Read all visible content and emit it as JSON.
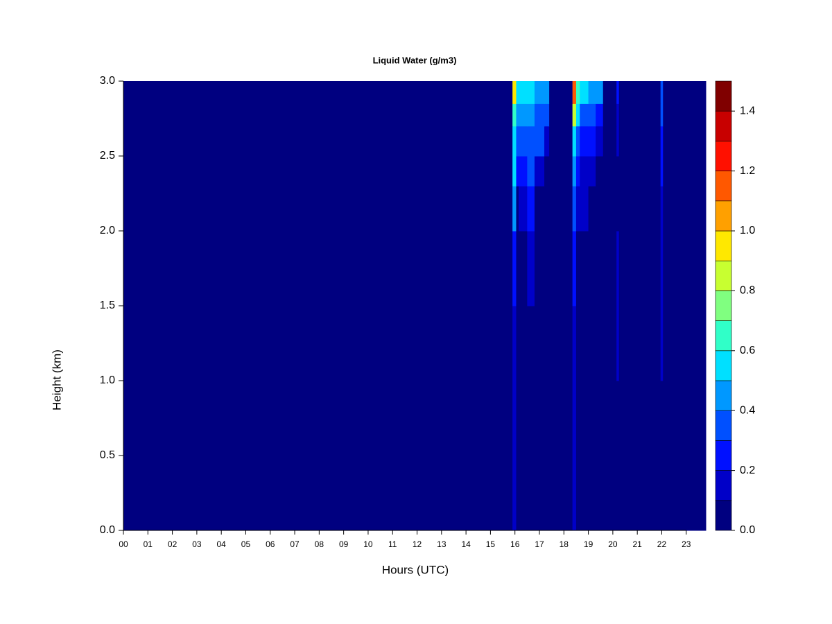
{
  "chart_data": {
    "type": "heatmap",
    "title": "Liquid Water (g/m3)",
    "x_label": "Hours (UTC)",
    "y_label": "Height (km)",
    "x_edges": [
      0,
      15.9,
      16.05,
      16.15,
      16.5,
      16.8,
      17.2,
      17.4,
      18.35,
      18.5,
      18.65,
      19.0,
      19.3,
      19.6,
      20.15,
      20.25,
      21.95,
      22.05,
      23.8
    ],
    "y_edges": [
      0,
      0.5,
      1.0,
      1.5,
      2.0,
      2.3,
      2.5,
      2.7,
      2.85,
      3.0
    ],
    "values": [
      [
        0,
        0.15,
        0,
        0,
        0,
        0,
        0,
        0,
        0.15,
        0,
        0,
        0,
        0,
        0,
        0,
        0,
        0,
        0
      ],
      [
        0,
        0.15,
        0,
        0,
        0,
        0,
        0,
        0,
        0.15,
        0,
        0,
        0,
        0,
        0,
        0,
        0,
        0,
        0
      ],
      [
        0,
        0.15,
        0,
        0,
        0,
        0,
        0,
        0,
        0.15,
        0,
        0,
        0,
        0,
        0,
        0.12,
        0,
        0.12,
        0
      ],
      [
        0,
        0.25,
        0,
        0,
        0.12,
        0,
        0,
        0,
        0.2,
        0,
        0,
        0,
        0,
        0,
        0.12,
        0,
        0.12,
        0
      ],
      [
        0,
        0.45,
        0,
        0.15,
        0.2,
        0,
        0,
        0,
        0.35,
        0.15,
        0.12,
        0,
        0,
        0,
        0,
        0,
        0.15,
        0
      ],
      [
        0,
        0.5,
        0.2,
        0.25,
        0.3,
        0.15,
        0,
        0,
        0.45,
        0.25,
        0.15,
        0.12,
        0,
        0,
        0,
        0,
        0.2,
        0
      ],
      [
        0,
        0.55,
        0.3,
        0.35,
        0.35,
        0.3,
        0.15,
        0,
        0.55,
        0.35,
        0.25,
        0.2,
        0.15,
        0,
        0.15,
        0,
        0.25,
        0
      ],
      [
        0,
        0.65,
        0.4,
        0.45,
        0.4,
        0.35,
        0.3,
        0,
        0.85,
        0.5,
        0.35,
        0.3,
        0.25,
        0,
        0.15,
        0,
        0.3,
        0
      ],
      [
        0,
        0.95,
        0.5,
        0.55,
        0.5,
        0.45,
        0.4,
        0,
        1.15,
        0.6,
        0.5,
        0.45,
        0.4,
        0,
        0.2,
        0,
        0.35,
        0
      ]
    ],
    "levels": [
      0,
      0.1,
      0.2,
      0.3,
      0.4,
      0.5,
      0.6,
      0.7,
      0.8,
      0.9,
      1.0,
      1.1,
      1.2,
      1.3,
      1.4,
      1.5
    ],
    "colors": [
      "#000080",
      "#0000c8",
      "#0010ff",
      "#0050ff",
      "#0098ff",
      "#00e0ff",
      "#30ffc8",
      "#80ff80",
      "#c8ff30",
      "#ffe800",
      "#ffa000",
      "#ff5800",
      "#ff1000",
      "#c80000",
      "#800000"
    ],
    "xlim": [
      0,
      23.8
    ],
    "ylim": [
      0,
      3.0
    ],
    "xticks": [
      {
        "value": 0,
        "label": "00"
      },
      {
        "value": 1,
        "label": "01"
      },
      {
        "value": 2,
        "label": "02"
      },
      {
        "value": 3,
        "label": "03"
      },
      {
        "value": 4,
        "label": "04"
      },
      {
        "value": 5,
        "label": "05"
      },
      {
        "value": 6,
        "label": "06"
      },
      {
        "value": 7,
        "label": "07"
      },
      {
        "value": 8,
        "label": "08"
      },
      {
        "value": 9,
        "label": "09"
      },
      10,
      11,
      12,
      13,
      14,
      15,
      16,
      17,
      18,
      19,
      20,
      21,
      22,
      23
    ],
    "yticks": [
      {
        "value": 0,
        "label": "0.0"
      },
      0.5,
      {
        "value": 1,
        "label": "1.0"
      },
      1.5,
      {
        "value": 2,
        "label": "2.0"
      },
      2.5,
      {
        "value": 3,
        "label": "3.0"
      }
    ],
    "colorbar_ticks": [
      {
        "value": 0,
        "label": "0.0"
      },
      0.2,
      0.4,
      0.6,
      0.8,
      {
        "value": 1,
        "label": "1.0"
      },
      1.2,
      1.4
    ]
  }
}
